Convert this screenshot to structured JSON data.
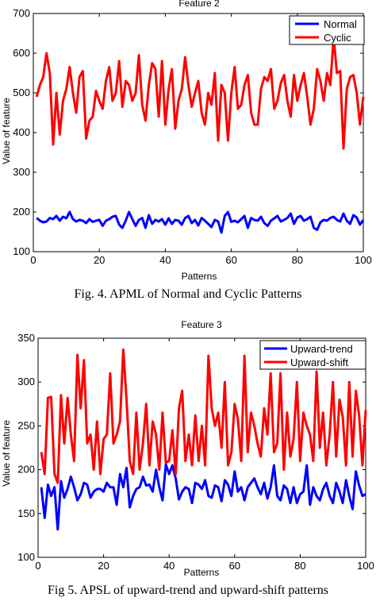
{
  "figures": [
    {
      "caption": "Fig. 4.  APML of Normal and Cyclic Patterns"
    },
    {
      "caption": "Fig 5. APSL of upward-trend and upward-shift patterns"
    }
  ],
  "chart_data": [
    {
      "type": "line",
      "title": "Feature  2",
      "xlabel": "Patterns",
      "ylabel": "Value of feature",
      "xlim": [
        0,
        100
      ],
      "ylim": [
        100,
        700
      ],
      "xticks": [
        0,
        20,
        40,
        60,
        80,
        100
      ],
      "yticks": [
        100,
        200,
        300,
        400,
        500,
        600,
        700
      ],
      "grid": false,
      "legend_position": "top-right",
      "series": [
        {
          "name": "Normal",
          "color": "#0000ff",
          "x": [
            1,
            2,
            3,
            4,
            5,
            6,
            7,
            8,
            9,
            10,
            11,
            12,
            13,
            14,
            15,
            16,
            17,
            18,
            19,
            20,
            21,
            22,
            23,
            24,
            25,
            26,
            27,
            28,
            29,
            30,
            31,
            32,
            33,
            34,
            35,
            36,
            37,
            38,
            39,
            40,
            41,
            42,
            43,
            44,
            45,
            46,
            47,
            48,
            49,
            50,
            51,
            52,
            53,
            54,
            55,
            56,
            57,
            58,
            59,
            60,
            61,
            62,
            63,
            64,
            65,
            66,
            67,
            68,
            69,
            70,
            71,
            72,
            73,
            74,
            75,
            76,
            77,
            78,
            79,
            80,
            81,
            82,
            83,
            84,
            85,
            86,
            87,
            88,
            89,
            90,
            91,
            92,
            93,
            94,
            95,
            96,
            97,
            98,
            99,
            100
          ],
          "values": [
            185,
            178,
            174,
            176,
            185,
            182,
            190,
            178,
            188,
            184,
            200,
            182,
            176,
            180,
            178,
            172,
            182,
            175,
            178,
            180,
            165,
            178,
            182,
            188,
            190,
            168,
            160,
            178,
            200,
            182,
            165,
            180,
            185,
            160,
            192,
            170,
            180,
            176,
            182,
            168,
            184,
            170,
            180,
            178,
            168,
            185,
            190,
            172,
            180,
            166,
            185,
            178,
            170,
            162,
            180,
            176,
            148,
            190,
            200,
            175,
            178,
            174,
            182,
            190,
            160,
            185,
            180,
            178,
            188,
            172,
            165,
            178,
            184,
            190,
            176,
            180,
            185,
            196,
            170,
            186,
            190,
            178,
            182,
            188,
            160,
            155,
            174,
            180,
            178,
            185,
            188,
            180,
            176,
            196,
            178,
            170,
            192,
            186,
            168,
            180
          ]
        },
        {
          "name": "Cyclic",
          "color": "#ff0000",
          "x": [
            1,
            2,
            3,
            4,
            5,
            6,
            7,
            8,
            9,
            10,
            11,
            12,
            13,
            14,
            15,
            16,
            17,
            18,
            19,
            20,
            21,
            22,
            23,
            24,
            25,
            26,
            27,
            28,
            29,
            30,
            31,
            32,
            33,
            34,
            35,
            36,
            37,
            38,
            39,
            40,
            41,
            42,
            43,
            44,
            45,
            46,
            47,
            48,
            49,
            50,
            51,
            52,
            53,
            54,
            55,
            56,
            57,
            58,
            59,
            60,
            61,
            62,
            63,
            64,
            65,
            66,
            67,
            68,
            69,
            70,
            71,
            72,
            73,
            74,
            75,
            76,
            77,
            78,
            79,
            80,
            81,
            82,
            83,
            84,
            85,
            86,
            87,
            88,
            89,
            90,
            91,
            92,
            93,
            94,
            95,
            96,
            97,
            98,
            99,
            100
          ],
          "values": [
            490,
            520,
            540,
            600,
            550,
            370,
            500,
            395,
            480,
            510,
            565,
            500,
            450,
            540,
            555,
            385,
            430,
            440,
            505,
            480,
            460,
            530,
            565,
            480,
            500,
            580,
            465,
            530,
            520,
            480,
            500,
            595,
            470,
            430,
            520,
            575,
            560,
            440,
            580,
            420,
            510,
            560,
            410,
            480,
            510,
            590,
            520,
            465,
            500,
            530,
            450,
            420,
            500,
            470,
            550,
            380,
            520,
            500,
            380,
            500,
            565,
            460,
            470,
            520,
            545,
            450,
            420,
            420,
            510,
            540,
            530,
            560,
            460,
            480,
            525,
            545,
            480,
            440,
            545,
            480,
            520,
            550,
            490,
            420,
            460,
            560,
            530,
            480,
            550,
            520,
            640,
            550,
            555,
            360,
            510,
            540,
            545,
            500,
            420,
            490
          ]
        }
      ]
    },
    {
      "type": "line",
      "title": "Feature  3",
      "xlabel": "Patterns",
      "ylabel": "Value of feature",
      "xlim": [
        0,
        100
      ],
      "ylim": [
        100,
        350
      ],
      "xticks": [
        0,
        20,
        40,
        60,
        80,
        100
      ],
      "yticks": [
        100,
        150,
        200,
        250,
        300,
        350
      ],
      "grid": false,
      "legend_position": "top-right",
      "series": [
        {
          "name": "Upward-trend",
          "color": "#0000ff",
          "x": [
            1,
            2,
            3,
            4,
            5,
            6,
            7,
            8,
            9,
            10,
            11,
            12,
            13,
            14,
            15,
            16,
            17,
            18,
            19,
            20,
            21,
            22,
            23,
            24,
            25,
            26,
            27,
            28,
            29,
            30,
            31,
            32,
            33,
            34,
            35,
            36,
            37,
            38,
            39,
            40,
            41,
            42,
            43,
            44,
            45,
            46,
            47,
            48,
            49,
            50,
            51,
            52,
            53,
            54,
            55,
            56,
            57,
            58,
            59,
            60,
            61,
            62,
            63,
            64,
            65,
            66,
            67,
            68,
            69,
            70,
            71,
            72,
            73,
            74,
            75,
            76,
            77,
            78,
            79,
            80,
            81,
            82,
            83,
            84,
            85,
            86,
            87,
            88,
            89,
            90,
            91,
            92,
            93,
            94,
            95,
            96,
            97,
            98,
            99,
            100
          ],
          "values": [
            180,
            145,
            183,
            170,
            180,
            132,
            187,
            168,
            178,
            192,
            180,
            165,
            172,
            185,
            183,
            168,
            175,
            178,
            178,
            175,
            185,
            180,
            180,
            160,
            195,
            180,
            202,
            157,
            170,
            178,
            180,
            192,
            182,
            183,
            175,
            200,
            180,
            165,
            206,
            195,
            205,
            190,
            166,
            175,
            180,
            178,
            162,
            185,
            183,
            178,
            188,
            170,
            168,
            182,
            180,
            164,
            188,
            183,
            170,
            198,
            175,
            180,
            165,
            180,
            185,
            190,
            180,
            172,
            185,
            167,
            180,
            205,
            170,
            165,
            182,
            178,
            162,
            180,
            162,
            172,
            175,
            205,
            160,
            180,
            170,
            165,
            178,
            185,
            170,
            162,
            185,
            175,
            162,
            188,
            170,
            155,
            198,
            182,
            170,
            172
          ]
        },
        {
          "name": "Upward-shift",
          "color": "#ff0000",
          "x": [
            1,
            2,
            3,
            4,
            5,
            6,
            7,
            8,
            9,
            10,
            11,
            12,
            13,
            14,
            15,
            16,
            17,
            18,
            19,
            20,
            21,
            22,
            23,
            24,
            25,
            26,
            27,
            28,
            29,
            30,
            31,
            32,
            33,
            34,
            35,
            36,
            37,
            38,
            39,
            40,
            41,
            42,
            43,
            44,
            45,
            46,
            47,
            48,
            49,
            50,
            51,
            52,
            53,
            54,
            55,
            56,
            57,
            58,
            59,
            60,
            61,
            62,
            63,
            64,
            65,
            66,
            67,
            68,
            69,
            70,
            71,
            72,
            73,
            74,
            75,
            76,
            77,
            78,
            79,
            80,
            81,
            82,
            83,
            84,
            85,
            86,
            87,
            88,
            89,
            90,
            91,
            92,
            93,
            94,
            95,
            96,
            97,
            98,
            99,
            100
          ],
          "values": [
            220,
            195,
            282,
            283,
            195,
            185,
            285,
            230,
            282,
            240,
            210,
            331,
            270,
            325,
            230,
            240,
            200,
            255,
            195,
            235,
            240,
            310,
            230,
            240,
            255,
            337,
            280,
            210,
            195,
            265,
            200,
            230,
            275,
            205,
            255,
            240,
            200,
            265,
            208,
            210,
            245,
            195,
            270,
            290,
            210,
            240,
            205,
            262,
            210,
            250,
            205,
            330,
            270,
            250,
            265,
            225,
            300,
            205,
            220,
            275,
            258,
            210,
            330,
            220,
            265,
            250,
            230,
            215,
            270,
            240,
            310,
            220,
            230,
            310,
            200,
            265,
            215,
            235,
            300,
            210,
            265,
            250,
            240,
            210,
            312,
            225,
            265,
            205,
            240,
            300,
            215,
            280,
            260,
            205,
            300,
            215,
            290,
            262,
            205,
            268
          ]
        }
      ]
    }
  ]
}
